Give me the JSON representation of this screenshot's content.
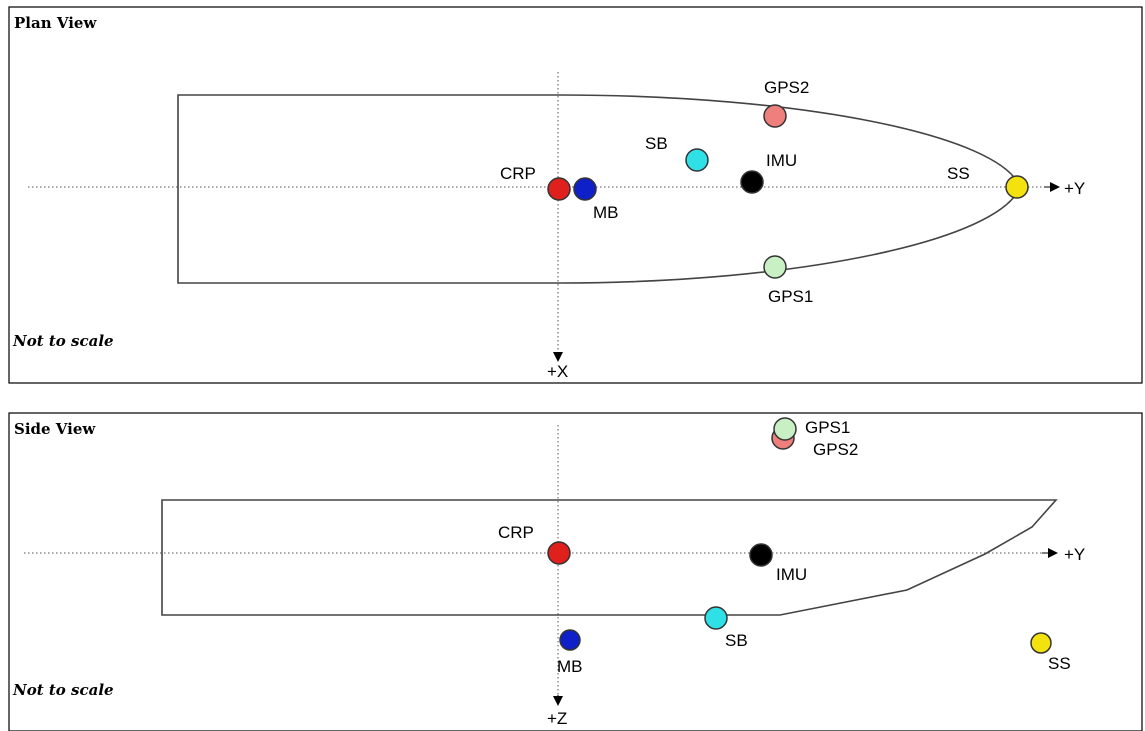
{
  "plan_view": {
    "title": "Plan View",
    "note": "Not to scale",
    "axis_y_label": "+Y",
    "axis_x_label": "+X",
    "points": [
      {
        "label": "CRP",
        "color": "#e0201c"
      },
      {
        "label": "MB",
        "color": "#1020c8"
      },
      {
        "label": "SB",
        "color": "#2fe0e6"
      },
      {
        "label": "IMU",
        "color": "#000000"
      },
      {
        "label": "GPS2",
        "color": "#ef7f7c"
      },
      {
        "label": "GPS1",
        "color": "#c9f0c4"
      },
      {
        "label": "SS",
        "color": "#f4e20e"
      }
    ]
  },
  "side_view": {
    "title": "Side View",
    "note": "Not to scale",
    "axis_y_label": "+Y",
    "axis_z_label": "+Z",
    "points": [
      {
        "label": "CRP",
        "color": "#e0201c"
      },
      {
        "label": "IMU",
        "color": "#000000"
      },
      {
        "label": "GPS1",
        "color": "#c9f0c4"
      },
      {
        "label": "GPS2",
        "color": "#ef7f7c"
      },
      {
        "label": "SB",
        "color": "#2fe0e6"
      },
      {
        "label": "MB",
        "color": "#1020c8"
      },
      {
        "label": "SS",
        "color": "#f4e20e"
      }
    ]
  }
}
